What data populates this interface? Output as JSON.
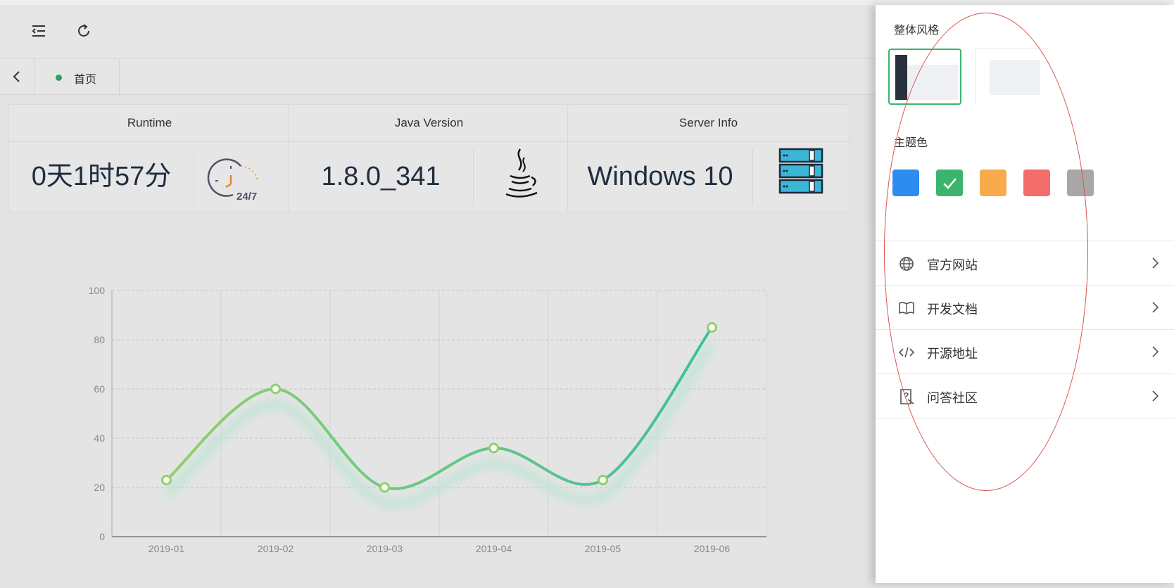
{
  "header": {
    "menu_icon": "fold-menu-icon",
    "refresh_icon": "refresh-icon"
  },
  "tabs": {
    "back_icon": "chevron-left-icon",
    "items": [
      {
        "label": "首页",
        "active": true
      }
    ]
  },
  "cards": [
    {
      "title": "Runtime",
      "value": "0天1时57分",
      "icon": "clock-24-7-icon",
      "icon_text": "24/7"
    },
    {
      "title": "Java Version",
      "value": "1.8.0_341",
      "icon": "java-icon"
    },
    {
      "title": "Server Info",
      "value": "Windows 10",
      "icon": "server-rack-icon"
    }
  ],
  "chart_data": {
    "type": "line",
    "categories": [
      "2019-01",
      "2019-02",
      "2019-03",
      "2019-04",
      "2019-05",
      "2019-06"
    ],
    "series": [
      {
        "values": [
          23,
          60,
          20,
          36,
          23,
          85
        ]
      }
    ],
    "ylim": [
      0,
      100
    ],
    "yticks": [
      "0",
      "20",
      "40",
      "60",
      "80",
      "100"
    ],
    "grid": true,
    "colors": [
      "#8fd16a",
      "#3dbf9e"
    ],
    "smooth": true
  },
  "drawer": {
    "style_title": "整体风格",
    "theme_title": "主题色",
    "theme_colors": [
      "#2d8cf0",
      "#3cb46e",
      "#f8ab4c",
      "#f56c6c",
      "#a7a7a7"
    ],
    "selected_theme": 1,
    "menu": [
      {
        "label": "官方网站",
        "icon": "globe-icon"
      },
      {
        "label": "开发文档",
        "icon": "book-icon"
      },
      {
        "label": "开源地址",
        "icon": "code-icon"
      },
      {
        "label": "问答社区",
        "icon": "question-doc-icon"
      }
    ]
  }
}
